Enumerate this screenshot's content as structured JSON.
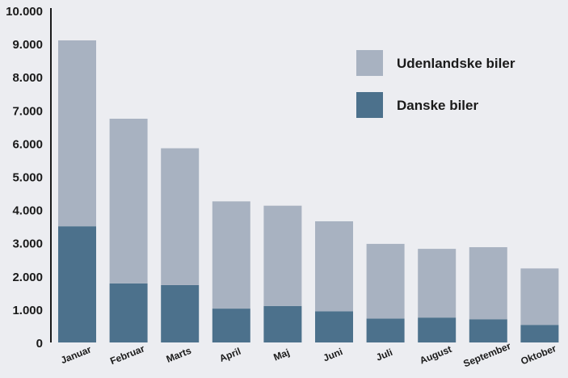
{
  "chart_data": {
    "type": "bar",
    "stacked": true,
    "categories": [
      "Januar",
      "Februar",
      "Marts",
      "April",
      "Maj",
      "Juni",
      "Juli",
      "August",
      "September",
      "Oktober"
    ],
    "series": [
      {
        "name": "Danske biler",
        "color": "#4c718c",
        "values": [
          3500,
          1780,
          1730,
          1020,
          1100,
          940,
          720,
          750,
          700,
          530
        ]
      },
      {
        "name": "Udenlandske biler",
        "color": "#a8b2c1",
        "values": [
          5600,
          4960,
          4120,
          3230,
          3020,
          2710,
          2250,
          2070,
          2170,
          1700
        ]
      }
    ],
    "yticks": [
      "0",
      "1.000",
      "2.000",
      "3.000",
      "4.000",
      "5.000",
      "6.000",
      "7.000",
      "8.000",
      "9.000",
      "10.000"
    ],
    "ylim": [
      0,
      10000
    ],
    "grid": false,
    "legend_position": "top-right",
    "legend_order": [
      "Udenlandske biler",
      "Danske biler"
    ]
  }
}
